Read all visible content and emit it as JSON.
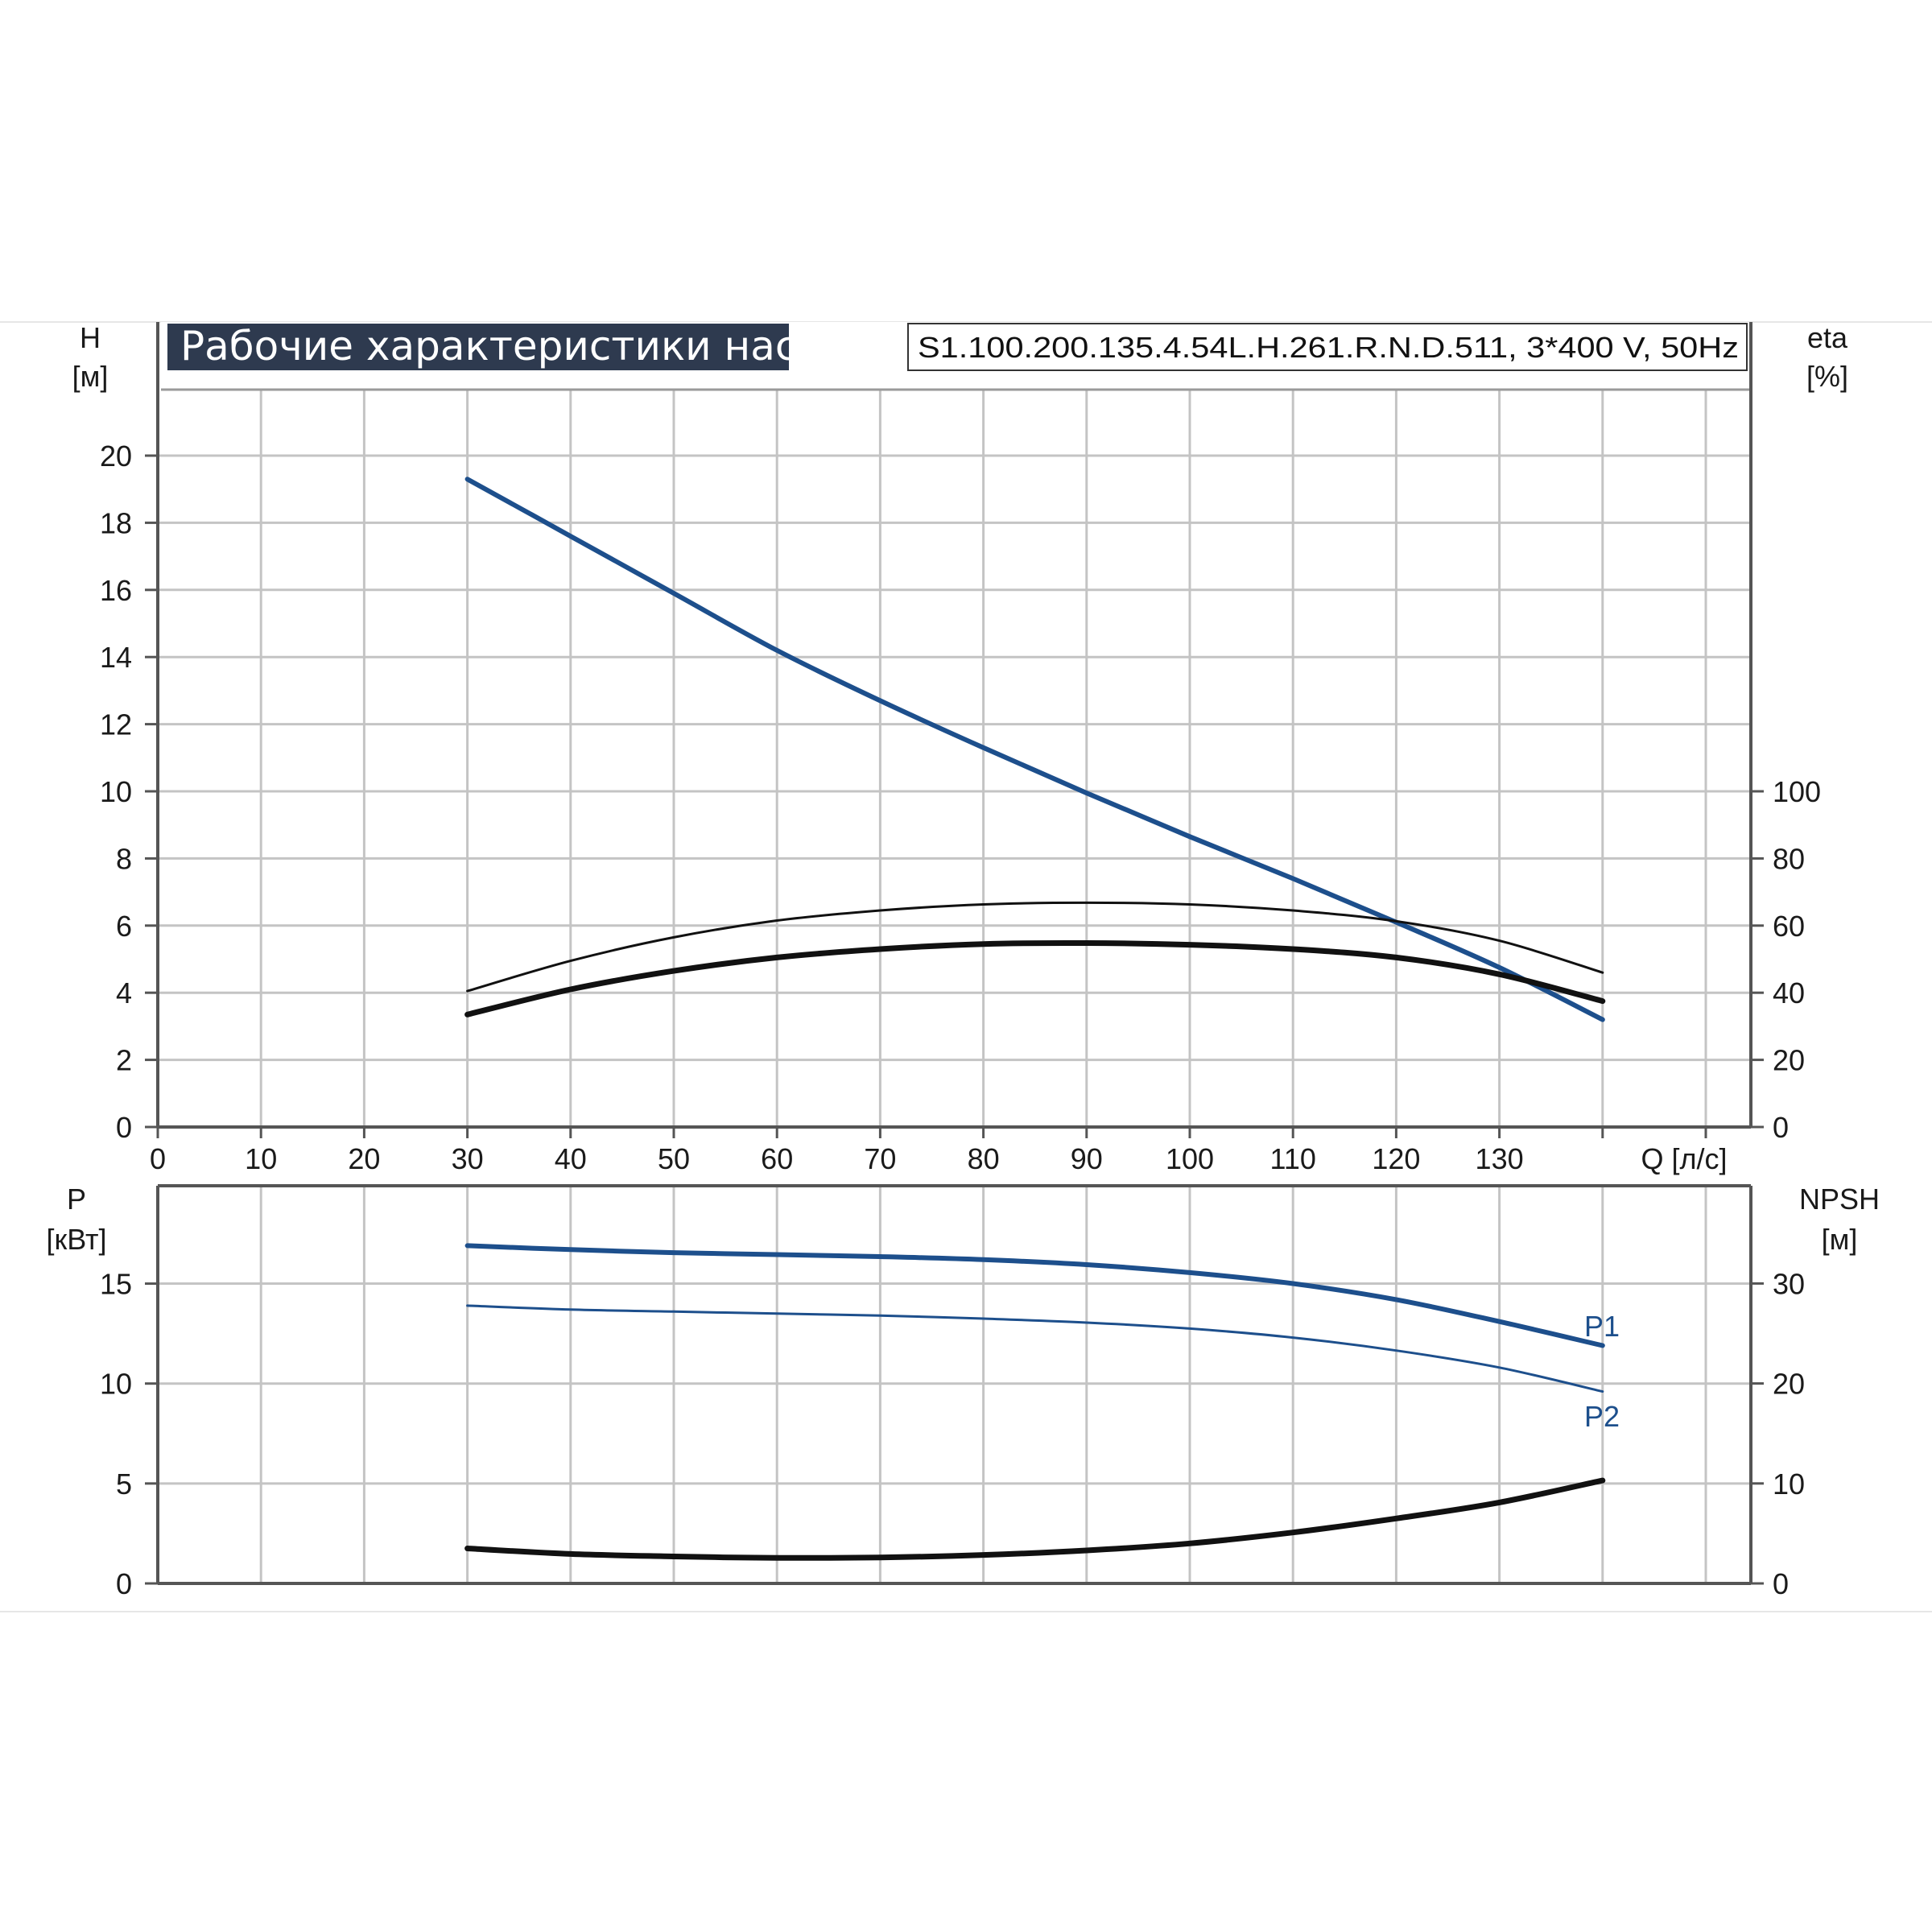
{
  "header": {
    "title": "Рабочие характеристики насоса",
    "model": "S1.100.200.135.4.54L.H.261.R.N.D.511, 3*400 V, 50Hz"
  },
  "colors": {
    "title_bg": "#2e3a4f",
    "blue": "#1d4f8c",
    "black": "#111111",
    "grid": "#c4c4c4",
    "axis": "#555555"
  },
  "chart_data": [
    {
      "type": "line",
      "panel": "top",
      "xlabel": "Q [л/с]",
      "x_ticks": [
        0,
        10,
        20,
        30,
        40,
        50,
        60,
        70,
        80,
        90,
        100,
        110,
        120,
        130
      ],
      "xlim": [
        0,
        154
      ],
      "left_axis": {
        "label_line1": "H",
        "label_line2": "[м]",
        "ylim": [
          0,
          22
        ],
        "ticks": [
          0,
          2,
          4,
          6,
          8,
          10,
          12,
          14,
          16,
          18,
          20
        ]
      },
      "right_axis": {
        "label_line1": "eta",
        "label_line2": "[%]",
        "ylim": [
          0,
          220
        ],
        "ticks": [
          0,
          20,
          40,
          60,
          80,
          100
        ]
      },
      "series": [
        {
          "axis": "left",
          "color": "blue",
          "width": 6,
          "points": [
            [
              30,
              19.3
            ],
            [
              40,
              17.6
            ],
            [
              50,
              15.9
            ],
            [
              60,
              14.2
            ],
            [
              70,
              12.7
            ],
            [
              80,
              11.3
            ],
            [
              90,
              9.95
            ],
            [
              100,
              8.65
            ],
            [
              110,
              7.4
            ],
            [
              120,
              6.1
            ],
            [
              130,
              4.75
            ],
            [
              140,
              3.2
            ]
          ]
        },
        {
          "axis": "right",
          "color": "black",
          "width": 3,
          "points": [
            [
              30,
              40.5
            ],
            [
              40,
              49.5
            ],
            [
              50,
              56.5
            ],
            [
              60,
              61.5
            ],
            [
              70,
              64.5
            ],
            [
              80,
              66.3
            ],
            [
              90,
              66.8
            ],
            [
              100,
              66.3
            ],
            [
              110,
              64.5
            ],
            [
              120,
              61.3
            ],
            [
              130,
              55.5
            ],
            [
              140,
              46
            ]
          ]
        },
        {
          "axis": "right",
          "color": "black",
          "width": 7,
          "points": [
            [
              30,
              33.5
            ],
            [
              40,
              41
            ],
            [
              50,
              46.5
            ],
            [
              60,
              50.5
            ],
            [
              70,
              53
            ],
            [
              80,
              54.5
            ],
            [
              90,
              54.8
            ],
            [
              100,
              54.3
            ],
            [
              110,
              53
            ],
            [
              120,
              50.5
            ],
            [
              130,
              45.5
            ],
            [
              140,
              37.5
            ]
          ]
        }
      ]
    },
    {
      "type": "line",
      "panel": "bottom",
      "x_ticks": [
        0,
        10,
        20,
        30,
        40,
        50,
        60,
        70,
        80,
        90,
        100,
        110,
        120,
        130
      ],
      "xlim": [
        0,
        154
      ],
      "left_axis": {
        "label_line1": "P",
        "label_line2": "[кВт]",
        "ylim": [
          0,
          19
        ],
        "ticks": [
          0,
          5,
          10,
          15
        ]
      },
      "right_axis": {
        "label_line1": "NPSH",
        "label_line2": "[м]",
        "ylim": [
          0,
          38
        ],
        "ticks": [
          0,
          10,
          20,
          30
        ]
      },
      "series": [
        {
          "name": "P1",
          "axis": "left",
          "color": "blue",
          "width": 6,
          "points": [
            [
              30,
              16.9
            ],
            [
              40,
              16.7
            ],
            [
              50,
              16.55
            ],
            [
              60,
              16.45
            ],
            [
              70,
              16.35
            ],
            [
              80,
              16.2
            ],
            [
              90,
              15.95
            ],
            [
              100,
              15.55
            ],
            [
              110,
              15.0
            ],
            [
              120,
              14.2
            ],
            [
              130,
              13.1
            ],
            [
              140,
              11.9
            ]
          ]
        },
        {
          "name": "P2",
          "axis": "left",
          "color": "blue",
          "width": 3,
          "points": [
            [
              30,
              13.9
            ],
            [
              40,
              13.7
            ],
            [
              50,
              13.6
            ],
            [
              60,
              13.5
            ],
            [
              70,
              13.4
            ],
            [
              80,
              13.25
            ],
            [
              90,
              13.05
            ],
            [
              100,
              12.75
            ],
            [
              110,
              12.3
            ],
            [
              120,
              11.65
            ],
            [
              130,
              10.8
            ],
            [
              140,
              9.6
            ]
          ]
        },
        {
          "axis": "right",
          "color": "black",
          "width": 7,
          "points": [
            [
              30,
              3.5
            ],
            [
              40,
              2.95
            ],
            [
              50,
              2.7
            ],
            [
              60,
              2.55
            ],
            [
              70,
              2.6
            ],
            [
              80,
              2.85
            ],
            [
              90,
              3.3
            ],
            [
              100,
              4.0
            ],
            [
              110,
              5.1
            ],
            [
              120,
              6.5
            ],
            [
              130,
              8.1
            ],
            [
              140,
              10.3
            ]
          ]
        }
      ]
    }
  ]
}
